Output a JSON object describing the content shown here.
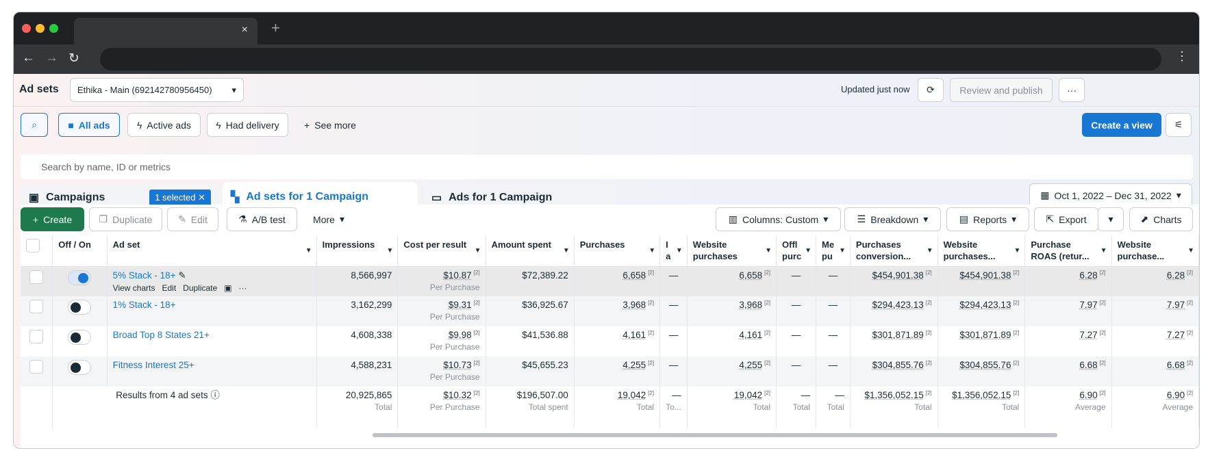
{
  "browser": {
    "close": "×",
    "new_tab": "+",
    "back": "←",
    "forward": "→",
    "reload": "↻",
    "menu": "⋮"
  },
  "header": {
    "title": "Ad sets",
    "account": "Ethika - Main (692142780956450)",
    "updated": "Updated just now",
    "review": "Review and publish",
    "more": "···"
  },
  "filters": {
    "all_ads": "All ads",
    "active_ads": "Active ads",
    "had_delivery": "Had delivery",
    "see_more": "See more",
    "create_view": "Create a view"
  },
  "search": {
    "placeholder": "Search by name, ID or metrics"
  },
  "tabs": {
    "campaigns": "Campaigns",
    "selected": "1 selected",
    "adsets": "Ad sets for 1 Campaign",
    "ads": "Ads for 1 Campaign",
    "date": "Oct 1, 2022 – Dec 31, 2022"
  },
  "toolbar": {
    "create": "Create",
    "duplicate": "Duplicate",
    "edit": "Edit",
    "abtest": "A/B test",
    "more": "More",
    "columns": "Columns: Custom",
    "breakdown": "Breakdown",
    "reports": "Reports",
    "export": "Export",
    "charts": "Charts"
  },
  "table": {
    "columns": [
      "",
      "Off / On",
      "Ad set",
      "Impressions",
      "Cost per result",
      "Amount spent",
      "Purchases",
      "I a",
      "Website purchases",
      "Offl purc",
      "Me pu",
      "Purchases conversion...",
      "Website purchases...",
      "Purchase ROAS (retur...",
      "Website purchase..."
    ],
    "row_actions": {
      "view_charts": "View charts",
      "edit": "Edit",
      "duplicate": "Duplicate",
      "more": "···"
    },
    "rows": [
      {
        "on": true,
        "name": "5% Stack - 18+",
        "impressions": "8,566,997",
        "cost": "$10.87",
        "cost_sub": "Per Purchase",
        "spent": "$72,389.22",
        "purchases": "6,658",
        "i": "—",
        "web": "6,658",
        "offl": "—",
        "me": "—",
        "conv": "$454,901.38",
        "webval": "$454,901.38",
        "roas": "6.28",
        "webroas": "6.28"
      },
      {
        "on": false,
        "name": "1% Stack - 18+",
        "impressions": "3,162,299",
        "cost": "$9.31",
        "cost_sub": "Per Purchase",
        "spent": "$36,925.67",
        "purchases": "3,968",
        "i": "—",
        "web": "3,968",
        "offl": "—",
        "me": "—",
        "conv": "$294,423.13",
        "webval": "$294,423.13",
        "roas": "7.97",
        "webroas": "7.97"
      },
      {
        "on": false,
        "name": "Broad Top 8 States 21+",
        "impressions": "4,608,338",
        "cost": "$9.98",
        "cost_sub": "Per Purchase",
        "spent": "$41,536.88",
        "purchases": "4,161",
        "i": "—",
        "web": "4,161",
        "offl": "—",
        "me": "—",
        "conv": "$301,871.89",
        "webval": "$301,871.89",
        "roas": "7.27",
        "webroas": "7.27"
      },
      {
        "on": false,
        "name": "Fitness Interest 25+",
        "impressions": "4,588,231",
        "cost": "$10.73",
        "cost_sub": "Per Purchase",
        "spent": "$45,655.23",
        "purchases": "4,255",
        "i": "—",
        "web": "4,255",
        "offl": "—",
        "me": "—",
        "conv": "$304,855.76",
        "webval": "$304,855.76",
        "roas": "6.68",
        "webroas": "6.68"
      }
    ],
    "footer": {
      "label": "Results from 4 ad sets",
      "cells": [
        [
          "20,925,865",
          "Total"
        ],
        [
          "$10.32",
          "Per Purchase"
        ],
        [
          "$196,507.00",
          "Total spent"
        ],
        [
          "19,042",
          "Total"
        ],
        [
          "—",
          "To..."
        ],
        [
          "19,042",
          "Total"
        ],
        [
          "—",
          "Total"
        ],
        [
          "—",
          "Total"
        ],
        [
          "$1,356,052.15",
          "Total"
        ],
        [
          "$1,356,052.15",
          "Total"
        ],
        [
          "6.90",
          "Average"
        ],
        [
          "6.90",
          "Average"
        ]
      ]
    },
    "note": "[2]"
  }
}
